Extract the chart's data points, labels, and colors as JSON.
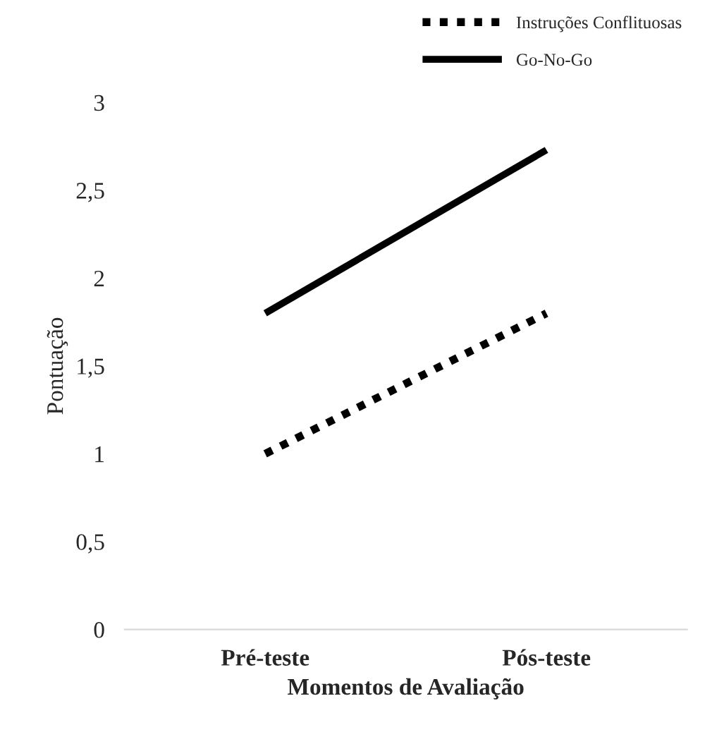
{
  "chart_data": {
    "type": "line",
    "xlabel": "Momentos de Avaliação",
    "ylabel": "Pontuação",
    "categories": [
      "Pré-teste",
      "Pós-teste"
    ],
    "series": [
      {
        "name": "Instruções Conflituosas",
        "color": "#000000",
        "values": [
          1.0,
          1.8
        ],
        "line_style": "dotted"
      },
      {
        "name": "Go-No-Go",
        "color": "#000000",
        "values": [
          1.8,
          2.73
        ],
        "line_style": "solid"
      }
    ],
    "ylim": [
      0,
      3
    ],
    "yticks": [
      0,
      {
        "value": 0.5,
        "label": "0,5"
      },
      1,
      {
        "value": 1.5,
        "label": "1,5"
      },
      2,
      {
        "value": 2.5,
        "label": "2,5"
      },
      3
    ],
    "grid": false,
    "legend": "top right",
    "marker": "none"
  }
}
